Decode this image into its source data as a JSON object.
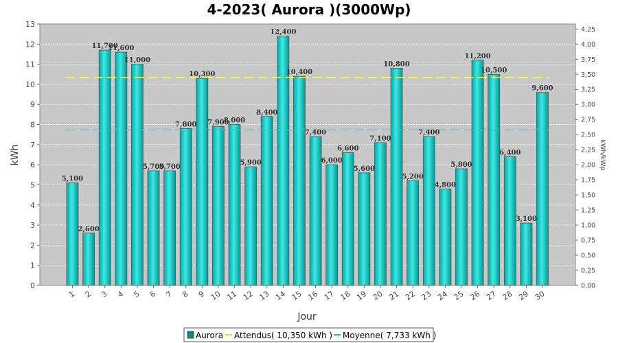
{
  "chart_data": {
    "type": "bar",
    "title": "4-2023( Aurora )(3000Wp)",
    "xlabel": "Jour",
    "ylabel": "kWh",
    "y2label": "kWh/kWp",
    "ylim": [
      0,
      13
    ],
    "y2lim": [
      0,
      4.3333
    ],
    "yticks": [
      "0",
      "1",
      "2",
      "3",
      "4",
      "5",
      "6",
      "7",
      "8",
      "9",
      "10",
      "11",
      "12",
      "13"
    ],
    "y2ticks": [
      "0,00",
      "0,25",
      "0,50",
      "0,75",
      "1,00",
      "1,25",
      "1,50",
      "1,75",
      "2,00",
      "2,25",
      "2,50",
      "2,75",
      "3,00",
      "3,25",
      "3,50",
      "3,75",
      "4,00",
      "4,25"
    ],
    "categories": [
      "1",
      "2",
      "3",
      "4",
      "5",
      "6",
      "7",
      "8",
      "9",
      "10",
      "11",
      "12",
      "13",
      "14",
      "15",
      "16",
      "17",
      "18",
      "19",
      "20",
      "21",
      "22",
      "23",
      "24",
      "25",
      "26",
      "27",
      "28",
      "29",
      "30"
    ],
    "values": [
      5.1,
      2.6,
      11.7,
      11.6,
      11.0,
      5.7,
      5.7,
      7.8,
      10.3,
      7.9,
      8.0,
      5.9,
      8.4,
      12.4,
      10.4,
      7.4,
      6.0,
      6.6,
      5.6,
      7.1,
      10.8,
      5.2,
      7.4,
      4.8,
      5.8,
      11.2,
      10.5,
      6.4,
      3.1,
      9.6
    ],
    "value_labels": [
      "5,100",
      "2,600",
      "11,700",
      "11,600",
      "11,000",
      "5,700",
      "5,700",
      "7,800",
      "10,300",
      "7,900",
      "8,000",
      "5,900",
      "8,400",
      "12,400",
      "10,400",
      "7,400",
      "6,000",
      "6,600",
      "5,600",
      "7,100",
      "10,800",
      "5,200",
      "7,400",
      "4,800",
      "5,800",
      "11,200",
      "10,500",
      "6,400",
      "3,100",
      "9,600"
    ],
    "reference_lines": [
      {
        "name": "Attendus( 10,350 kWh )",
        "value": 10.35,
        "color": "#ffff66"
      },
      {
        "name": "Moyenne( 7,733 kWh )",
        "value": 7.733,
        "color": "#33cccc"
      }
    ],
    "series": [
      {
        "name": "Aurora",
        "values": [
          5.1,
          2.6,
          11.7,
          11.6,
          11.0,
          5.7,
          5.7,
          7.8,
          10.3,
          7.9,
          8.0,
          5.9,
          8.4,
          12.4,
          10.4,
          7.4,
          6.0,
          6.6,
          5.6,
          7.1,
          10.8,
          5.2,
          7.4,
          4.8,
          5.8,
          11.2,
          10.5,
          6.4,
          3.1,
          9.6
        ],
        "color": "#00c0c0"
      }
    ],
    "legend": [
      "Aurora",
      "Attendus( 10,350 kWh )",
      "Moyenne( 7,733 kWh )"
    ],
    "legend_position": "bottom",
    "grid": true,
    "plot_background": "#c8c8c8"
  }
}
